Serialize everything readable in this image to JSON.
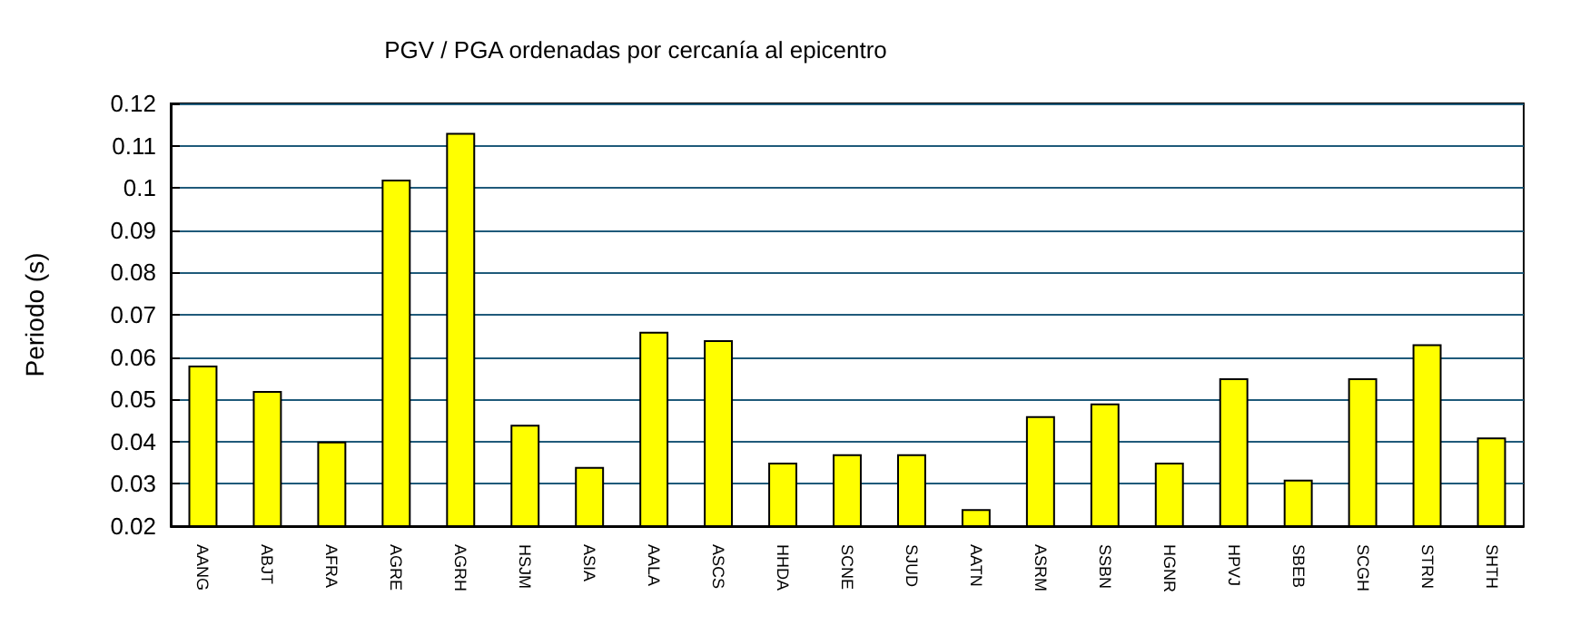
{
  "chart_data": {
    "type": "bar",
    "title": "PGV / PGA ordenadas por cercanía al epicentro",
    "ylabel": "Periodo (s)",
    "categories": [
      "AANG",
      "ABJT",
      "AFRA",
      "AGRE",
      "AGRH",
      "HSJM",
      "ASIA",
      "AALA",
      "ASCS",
      "HHDA",
      "SCNE",
      "SJUD",
      "AATN",
      "ASRM",
      "SSBN",
      "HGNR",
      "HPVJ",
      "SBEB",
      "SCGH",
      "STRN",
      "SHTH"
    ],
    "values": [
      0.058,
      0.052,
      0.04,
      0.102,
      0.113,
      0.044,
      0.034,
      0.066,
      0.064,
      0.035,
      0.037,
      0.037,
      0.024,
      0.046,
      0.049,
      0.035,
      0.055,
      0.031,
      0.055,
      0.063,
      0.041
    ],
    "color": "#ffff00",
    "ylim": [
      0.02,
      0.12
    ],
    "yticks": [
      0.02,
      0.03,
      0.04,
      0.05,
      0.06,
      0.07,
      0.08,
      0.09,
      0.1,
      0.11,
      0.12
    ],
    "grid": "y"
  }
}
